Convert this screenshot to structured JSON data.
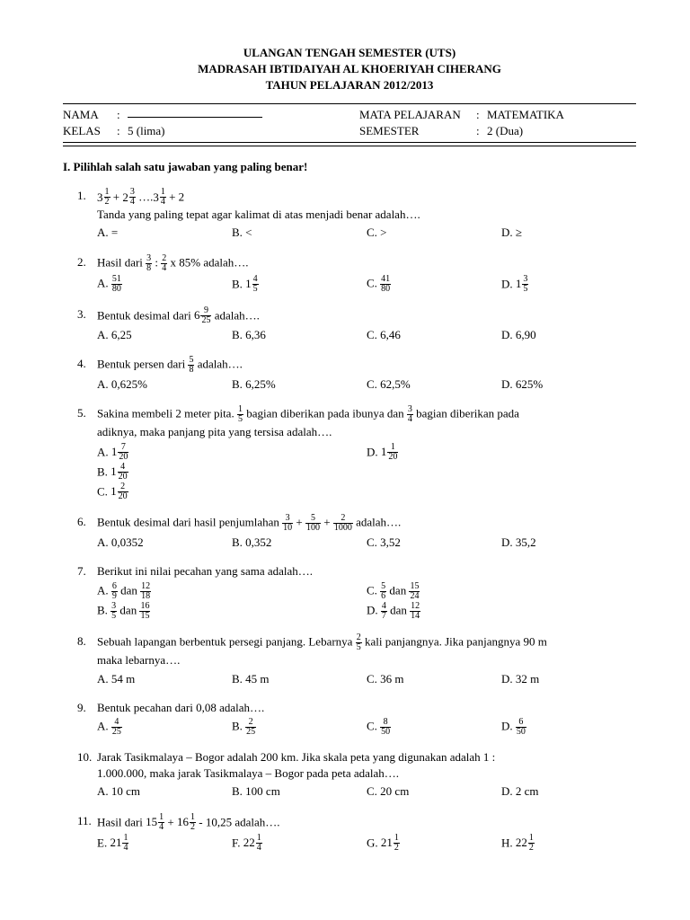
{
  "header": {
    "line1": "ULANGAN TENGAH SEMESTER (UTS)",
    "line2": "MADRASAH IBTIDAIYAH AL KHOERIYAH CIHERANG",
    "line3": "TAHUN PELAJARAN 2012/2013"
  },
  "info": {
    "nama_label": "NAMA",
    "kelas_label": "KELAS",
    "kelas_value": "5 (lima)",
    "mapel_label": "MATA PELAJARAN",
    "mapel_value": "MATEMATIKA",
    "sem_label": "SEMESTER",
    "sem_value": "2 (Dua)"
  },
  "section": "I. Pilihlah salah satu jawaban yang paling benar!",
  "q": {
    "1": {
      "num": "1.",
      "line2": "Tanda yang paling tepat agar kalimat di atas menjadi benar adalah….",
      "a": "A.  =",
      "b": "B.  <",
      "c": "C.  >",
      "d": "D.  ≥"
    },
    "2": {
      "num": "2.",
      "stem_pre": "Hasil dari ",
      "stem_post": " x 85%  adalah….",
      "a_pre": "A.  ",
      "b_pre": "B.  ",
      "c_pre": "C.  ",
      "d_pre": "D.  "
    },
    "3": {
      "num": "3.",
      "stem_pre": "Bentuk desimal dari ",
      "stem_post": " adalah….",
      "a": "A.  6,25",
      "b": "B.  6,36",
      "c": "C.  6,46",
      "d": "D.  6,90"
    },
    "4": {
      "num": "4.",
      "stem_pre": "Bentuk persen dari ",
      "stem_post": " adalah….",
      "a": "A.  0,625%",
      "b": "B.  6,25%",
      "c": "C.  62,5%",
      "d": "D.  625%"
    },
    "5": {
      "num": "5.",
      "stem1_pre": "Sakina membeli 2 meter pita. ",
      "stem1_mid": " bagian diberikan pada ibunya dan ",
      "stem1_post": " bagian diberikan pada",
      "stem2": "adiknya, maka panjang pita yang tersisa adalah….",
      "a_pre": "A.  ",
      "b_pre": "B.  ",
      "c_pre": "C.  ",
      "d_pre": "D.  "
    },
    "6": {
      "num": "6.",
      "stem_pre": "Bentuk desimal dari hasil penjumlahan ",
      "stem_post": " adalah….",
      "a": "A.  0,0352",
      "b": "B.  0,352",
      "c": "C.  3,52",
      "d": "D.  35,2"
    },
    "7": {
      "num": "7.",
      "stem": "Berikut ini nilai pecahan yang sama adalah….",
      "a_pre": "A.  ",
      "b_pre": "B.  ",
      "c_pre": "C.  ",
      "d_pre": "D.  ",
      "dan": " dan "
    },
    "8": {
      "num": "8.",
      "stem_pre": "Sebuah lapangan berbentuk persegi panjang. Lebarnya ",
      "stem_post": " kali panjangnya. Jika panjangnya 90 m",
      "stem2": "maka lebarnya….",
      "a": "A.  54 m",
      "b": "B.  45 m",
      "c": "C.  36 m",
      "d": "D.  32 m"
    },
    "9": {
      "num": "9.",
      "stem": "Bentuk pecahan dari 0,08 adalah….",
      "a_pre": "A.  ",
      "b_pre": "B.  ",
      "c_pre": "C.  ",
      "d_pre": "D.  "
    },
    "10": {
      "num": "10.",
      "stem1": "Jarak Tasikmalaya – Bogor adalah 200 km. Jika skala peta yang digunakan adalah 1 :",
      "stem2": "1.000.000, maka jarak Tasikmalaya – Bogor pada peta adalah….",
      "a": "A.  10 cm",
      "b": "B.  100 cm",
      "c": "C.  20 cm",
      "d": "D.  2 cm"
    },
    "11": {
      "num": "11.",
      "stem_pre": "Hasil dari ",
      "stem_post": " - 10,25 adalah….",
      "e_pre": "E.  ",
      "f_pre": "F.  ",
      "g_pre": "G.  ",
      "h_pre": "H.  "
    }
  },
  "fracs": {
    "f12": {
      "n": "1",
      "d": "2"
    },
    "f34": {
      "n": "3",
      "d": "4"
    },
    "f14": {
      "n": "1",
      "d": "4"
    },
    "f38": {
      "n": "3",
      "d": "8"
    },
    "f24": {
      "n": "2",
      "d": "4"
    },
    "f5180": {
      "n": "51",
      "d": "80"
    },
    "f45": {
      "n": "4",
      "d": "5"
    },
    "f4180": {
      "n": "41",
      "d": "80"
    },
    "f35": {
      "n": "3",
      "d": "5"
    },
    "f925": {
      "n": "9",
      "d": "25"
    },
    "f58": {
      "n": "5",
      "d": "8"
    },
    "f15": {
      "n": "1",
      "d": "5"
    },
    "f720": {
      "n": "7",
      "d": "20"
    },
    "f420": {
      "n": "4",
      "d": "20"
    },
    "f220": {
      "n": "2",
      "d": "20"
    },
    "f120": {
      "n": "1",
      "d": "20"
    },
    "f310": {
      "n": "3",
      "d": "10"
    },
    "f5100": {
      "n": "5",
      "d": "100"
    },
    "f21000": {
      "n": "2",
      "d": "1000"
    },
    "f69": {
      "n": "6",
      "d": "9"
    },
    "f1218": {
      "n": "12",
      "d": "18"
    },
    "f1615": {
      "n": "16",
      "d": "15"
    },
    "f56": {
      "n": "5",
      "d": "6"
    },
    "f1524": {
      "n": "15",
      "d": "24"
    },
    "f47": {
      "n": "4",
      "d": "7"
    },
    "f1214": {
      "n": "12",
      "d": "14"
    },
    "f25": {
      "n": "2",
      "d": "5"
    },
    "f425": {
      "n": "4",
      "d": "25"
    },
    "f225": {
      "n": "2",
      "d": "25"
    },
    "f850": {
      "n": "8",
      "d": "50"
    },
    "f650": {
      "n": "6",
      "d": "50"
    }
  }
}
